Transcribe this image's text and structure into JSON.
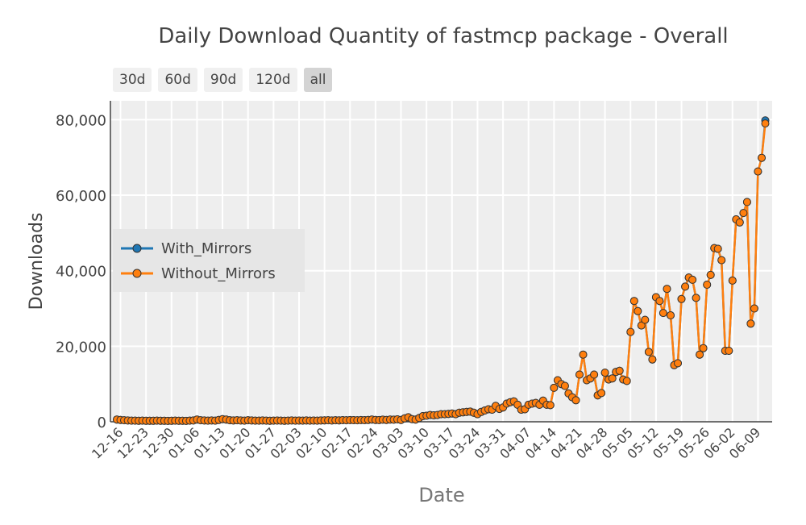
{
  "title": "Daily Download Quantity of fastmcp package - Overall",
  "range_buttons": [
    "30d",
    "60d",
    "90d",
    "120d",
    "all"
  ],
  "active_range": "all",
  "colors": {
    "with_mirrors": "#1f77b4",
    "without_mirrors": "#ff7f0e",
    "plot_bg": "#eeeeee"
  },
  "chart_data": {
    "type": "line",
    "title": "Daily Download Quantity of fastmcp package - Overall",
    "xlabel": "Date",
    "ylabel": "Downloads",
    "ylim": [
      0,
      85000
    ],
    "yticks": [
      0,
      20000,
      40000,
      60000,
      80000
    ],
    "ytick_labels": [
      "0",
      "20,000",
      "40,000",
      "60,000",
      "80,000"
    ],
    "xtick_labels": [
      "12-16",
      "12-23",
      "12-30",
      "01-06",
      "01-13",
      "01-20",
      "01-27",
      "02-03",
      "02-10",
      "02-17",
      "02-24",
      "03-03",
      "03-10",
      "03-17",
      "03-24",
      "03-31",
      "04-07",
      "04-14",
      "04-21",
      "04-28",
      "05-05",
      "05-12",
      "05-19",
      "05-26",
      "06-02",
      "06-09"
    ],
    "x_start": "12-15",
    "num_days": 180,
    "legend": [
      "With_Mirrors",
      "Without_Mirrors"
    ],
    "series": [
      {
        "name": "With_Mirrors",
        "values": [
          600,
          500,
          400,
          350,
          300,
          300,
          280,
          300,
          250,
          280,
          260,
          300,
          280,
          250,
          240,
          260,
          300,
          280,
          250,
          240,
          300,
          350,
          600,
          400,
          350,
          300,
          350,
          300,
          500,
          700,
          600,
          400,
          350,
          400,
          350,
          300,
          400,
          350,
          300,
          300,
          350,
          300,
          280,
          300,
          320,
          300,
          280,
          300,
          350,
          300,
          320,
          300,
          350,
          300,
          330,
          300,
          350,
          380,
          400,
          350,
          400,
          380,
          420,
          400,
          450,
          420,
          400,
          450,
          420,
          500,
          600,
          500,
          450,
          550,
          500,
          600,
          550,
          650,
          500,
          900,
          1200,
          700,
          600,
          1000,
          1500,
          1600,
          1800,
          1700,
          1800,
          2000,
          2000,
          2100,
          2200,
          2000,
          2400,
          2500,
          2600,
          2700,
          2400,
          2000,
          2600,
          3000,
          3300,
          3200,
          4200,
          3400,
          3800,
          4800,
          5200,
          5400,
          4500,
          3200,
          3300,
          4500,
          4800,
          5000,
          4500,
          5600,
          4500,
          4400,
          9000,
          11000,
          10000,
          9500,
          7500,
          6500,
          5700,
          12500,
          17800,
          11000,
          11500,
          12500,
          7000,
          7600,
          13000,
          11200,
          11500,
          13200,
          13500,
          11200,
          10800,
          23800,
          32000,
          29300,
          25500,
          27000,
          18500,
          16500,
          33000,
          32000,
          28800,
          35200,
          28200,
          15000,
          15500,
          32500,
          35800,
          38200,
          37600,
          32800,
          17800,
          19500,
          36300,
          38900,
          46000,
          45800,
          42800,
          18800,
          18800,
          37400,
          53600,
          52800,
          55300,
          58200,
          26000,
          30000,
          66300,
          69900,
          79800
        ]
      },
      {
        "name": "Without_Mirrors",
        "values": [
          600,
          500,
          400,
          350,
          300,
          300,
          280,
          300,
          250,
          280,
          260,
          300,
          280,
          250,
          240,
          260,
          300,
          280,
          250,
          240,
          300,
          350,
          600,
          400,
          350,
          300,
          350,
          300,
          500,
          700,
          600,
          400,
          350,
          400,
          350,
          300,
          400,
          350,
          300,
          300,
          350,
          300,
          280,
          300,
          320,
          300,
          280,
          300,
          350,
          300,
          320,
          300,
          350,
          300,
          330,
          300,
          350,
          380,
          400,
          350,
          400,
          380,
          420,
          400,
          450,
          420,
          400,
          450,
          420,
          500,
          600,
          500,
          450,
          550,
          500,
          600,
          550,
          650,
          500,
          900,
          1200,
          700,
          600,
          1000,
          1500,
          1600,
          1800,
          1700,
          1800,
          2000,
          2000,
          2100,
          2200,
          2000,
          2400,
          2500,
          2600,
          2700,
          2400,
          2000,
          2600,
          3000,
          3300,
          3200,
          4200,
          3400,
          3800,
          4800,
          5200,
          5400,
          4500,
          3200,
          3300,
          4500,
          4800,
          5000,
          4500,
          5600,
          4500,
          4400,
          9000,
          11000,
          10000,
          9500,
          7500,
          6500,
          5700,
          12500,
          17800,
          11000,
          11500,
          12500,
          7000,
          7600,
          13000,
          11200,
          11500,
          13200,
          13500,
          11200,
          10800,
          23800,
          32000,
          29300,
          25500,
          27000,
          18500,
          16500,
          33000,
          32000,
          28800,
          35200,
          28200,
          15000,
          15500,
          32500,
          35800,
          38200,
          37600,
          32800,
          17800,
          19500,
          36300,
          38900,
          46000,
          45800,
          42800,
          18800,
          18800,
          37400,
          53600,
          52800,
          55300,
          58200,
          26000,
          30000,
          66300,
          69900,
          79000
        ]
      }
    ]
  }
}
